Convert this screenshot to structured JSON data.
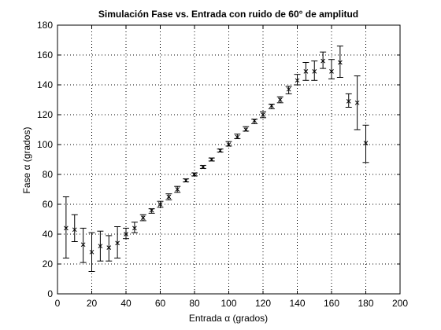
{
  "chart_data": {
    "type": "scatter",
    "title": "Simulación Fase vs. Entrada con ruido de 60° de amplitud",
    "xlabel": "Entrada α (grados)",
    "ylabel": "Fase α (grados)",
    "xlim": [
      0,
      200
    ],
    "ylim": [
      0,
      180
    ],
    "xticks": [
      0,
      20,
      40,
      60,
      80,
      100,
      120,
      140,
      160,
      180,
      200
    ],
    "yticks": [
      0,
      20,
      40,
      60,
      80,
      100,
      120,
      140,
      160,
      180
    ],
    "grid": true,
    "marker": "x",
    "colors": {
      "marker": "#000000",
      "errorbar": "#000000",
      "grid": "#000000",
      "axes": "#000000"
    },
    "series": [
      {
        "points": [
          {
            "x": 5,
            "y": 44,
            "low": 24,
            "high": 65
          },
          {
            "x": 10,
            "y": 43,
            "low": 35,
            "high": 53
          },
          {
            "x": 15,
            "y": 33,
            "low": 21,
            "high": 44
          },
          {
            "x": 20,
            "y": 28,
            "low": 15,
            "high": 41
          },
          {
            "x": 25,
            "y": 32,
            "low": 22,
            "high": 42
          },
          {
            "x": 30,
            "y": 31,
            "low": 22,
            "high": 39
          },
          {
            "x": 35,
            "y": 34,
            "low": 24,
            "high": 45
          },
          {
            "x": 40,
            "y": 40,
            "low": 37,
            "high": 44
          },
          {
            "x": 45,
            "y": 44,
            "low": 41,
            "high": 48
          },
          {
            "x": 50,
            "y": 51,
            "low": 49,
            "high": 53
          },
          {
            "x": 55,
            "y": 56,
            "low": 54,
            "high": 57
          },
          {
            "x": 60,
            "y": 60,
            "low": 58,
            "high": 62
          },
          {
            "x": 65,
            "y": 65,
            "low": 63,
            "high": 67
          },
          {
            "x": 70,
            "y": 70,
            "low": 68,
            "high": 72
          },
          {
            "x": 75,
            "y": 76,
            "low": 75,
            "high": 77
          },
          {
            "x": 80,
            "y": 80,
            "low": 79,
            "high": 81
          },
          {
            "x": 85,
            "y": 85,
            "low": 84,
            "high": 86
          },
          {
            "x": 90,
            "y": 90,
            "low": 89,
            "high": 91
          },
          {
            "x": 95,
            "y": 96,
            "low": 95,
            "high": 97
          },
          {
            "x": 100,
            "y": 100,
            "low": 99,
            "high": 102
          },
          {
            "x": 105,
            "y": 105,
            "low": 104,
            "high": 107
          },
          {
            "x": 110,
            "y": 110,
            "low": 109,
            "high": 112
          },
          {
            "x": 115,
            "y": 116,
            "low": 114,
            "high": 117
          },
          {
            "x": 120,
            "y": 120,
            "low": 118,
            "high": 122
          },
          {
            "x": 125,
            "y": 126,
            "low": 124,
            "high": 127
          },
          {
            "x": 130,
            "y": 130,
            "low": 128,
            "high": 132
          },
          {
            "x": 135,
            "y": 137,
            "low": 134,
            "high": 139
          },
          {
            "x": 140,
            "y": 143,
            "low": 140,
            "high": 147
          },
          {
            "x": 145,
            "y": 149,
            "low": 143,
            "high": 155
          },
          {
            "x": 150,
            "y": 149,
            "low": 143,
            "high": 156
          },
          {
            "x": 155,
            "y": 156,
            "low": 151,
            "high": 162
          },
          {
            "x": 160,
            "y": 149,
            "low": 144,
            "high": 157
          },
          {
            "x": 165,
            "y": 155,
            "low": 145,
            "high": 166
          },
          {
            "x": 170,
            "y": 129,
            "low": 125,
            "high": 134
          },
          {
            "x": 175,
            "y": 128,
            "low": 110,
            "high": 146
          },
          {
            "x": 180,
            "y": 101,
            "low": 88,
            "high": 113
          }
        ]
      }
    ]
  }
}
